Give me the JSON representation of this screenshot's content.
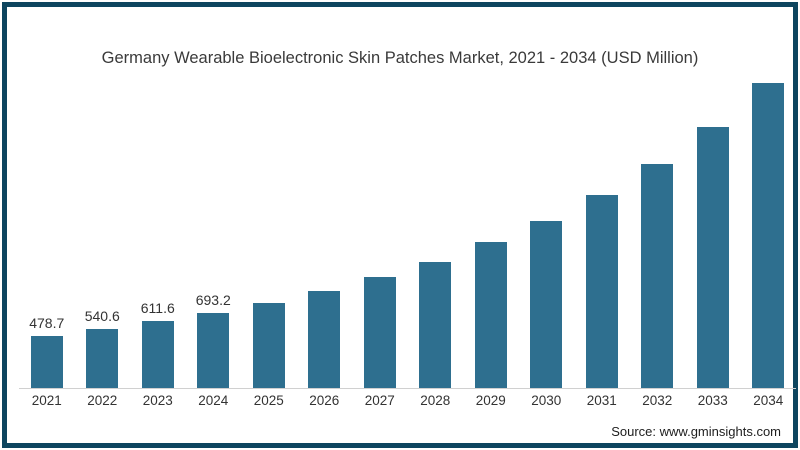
{
  "title": "Germany Wearable Bioelectronic Skin Patches Market, 2021 - 2034 (USD Million)",
  "source": "Source: www.gminsights.com",
  "colors": {
    "bar": "#2e6f8f",
    "frame_border": "#0d455f",
    "axis_line": "#d0d0d0",
    "title_text": "#3a3a3a",
    "label_text": "#333333"
  },
  "chart_data": {
    "type": "bar",
    "title": "Germany Wearable Bioelectronic Skin Patches Market, 2021 - 2034 (USD Million)",
    "xlabel": "",
    "ylabel": "",
    "ylim": [
      0,
      2900
    ],
    "grid": false,
    "legend": false,
    "categories": [
      "2021",
      "2022",
      "2023",
      "2024",
      "2025",
      "2026",
      "2027",
      "2028",
      "2029",
      "2030",
      "2031",
      "2032",
      "2033",
      "2034"
    ],
    "values": [
      478.7,
      540.6,
      611.6,
      693.2,
      780,
      890,
      1015,
      1160,
      1340,
      1535,
      1775,
      2055,
      2395,
      2800
    ],
    "data_labels": [
      "478.7",
      "540.6",
      "611.6",
      "693.2",
      "",
      "",
      "",
      "",
      "",
      "",
      "",
      "",
      "",
      ""
    ]
  }
}
